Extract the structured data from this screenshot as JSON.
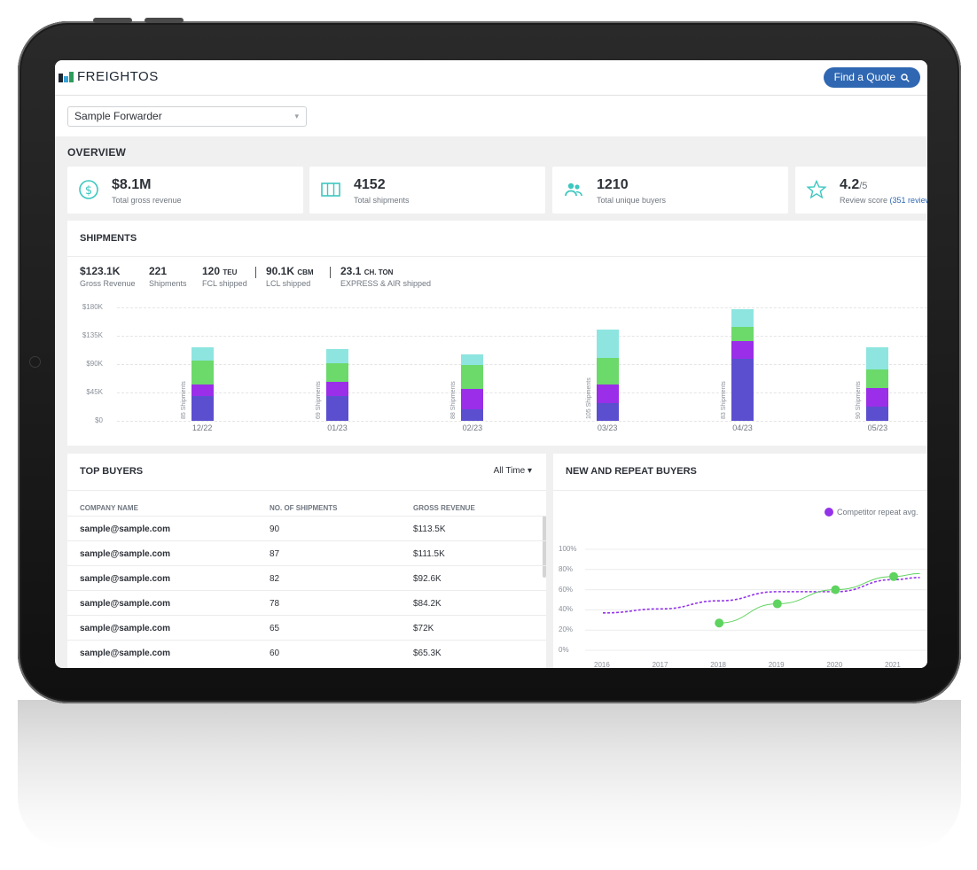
{
  "app": {
    "logo_text": "FREIGHTOS",
    "quote_button": "Find a Quote",
    "forwarder_select": "Sample Forwarder"
  },
  "overview": {
    "title": "OVERVIEW",
    "kpis": [
      {
        "icon": "dollar-circle-icon",
        "value": "$8.1M",
        "suffix": "",
        "label": "Total gross revenue"
      },
      {
        "icon": "container-icon",
        "value": "4152",
        "suffix": "",
        "label": "Total shipments"
      },
      {
        "icon": "users-icon",
        "value": "1210",
        "suffix": "",
        "label": "Total unique buyers"
      },
      {
        "icon": "star-icon",
        "value": "4.2",
        "suffix": "/5",
        "label": "Review score",
        "link": "(351 review"
      }
    ]
  },
  "shipments": {
    "title": "SHIPMENTS",
    "summary": [
      {
        "value": "$123.1K",
        "unit": "",
        "label": "Gross Revenue"
      },
      {
        "value": "221",
        "unit": "",
        "label": "Shipments"
      },
      {
        "value": "120",
        "unit": "TEU",
        "label": "FCL shipped"
      },
      {
        "value": "90.1K",
        "unit": "CBM",
        "label": "LCL shipped"
      },
      {
        "value": "23.1",
        "unit": "CH. TON",
        "label": "EXPRESS & AIR shipped"
      }
    ]
  },
  "chart_data": [
    {
      "type": "bar",
      "stacked": true,
      "categories": [
        "12/22",
        "01/23",
        "02/23",
        "03/23",
        "04/23",
        "05/23"
      ],
      "series": [
        {
          "color": "#5b4fd0",
          "values": [
            40,
            40,
            18,
            28,
            98,
            22
          ]
        },
        {
          "color": "#9b2ee8",
          "values": [
            18,
            22,
            33,
            30,
            28,
            30
          ]
        },
        {
          "color": "#6cd96b",
          "values": [
            37,
            30,
            37,
            42,
            23,
            30
          ]
        },
        {
          "color": "#8ee5e0",
          "values": [
            22,
            22,
            17,
            45,
            28,
            35
          ]
        }
      ],
      "bar_annotations": [
        "85 Shipments",
        "69 Shipments",
        "88 Shipments",
        "105 Shipments",
        "83 Shipments",
        "90 Shipments"
      ],
      "y_ticks": [
        "$0",
        "$45K",
        "$90K",
        "$135K",
        "$180K"
      ],
      "ylim": [
        0,
        180
      ],
      "grid": true
    },
    {
      "type": "line",
      "title": "NEW AND REPEAT BUYERS",
      "x": [
        2016,
        2017,
        2018,
        2019,
        2020,
        2021
      ],
      "x_labels": [
        "2016",
        "2017",
        "2018",
        "2019",
        "2020",
        "2021"
      ],
      "y_ticks": [
        "0%",
        "20%",
        "40%",
        "60%",
        "80%",
        "100%"
      ],
      "ylim": [
        0,
        100
      ],
      "series": [
        {
          "name": "Competitor repeat avg.",
          "color": "#9333ea",
          "style": "dashed",
          "x": [
            2016,
            2017,
            2018,
            2019,
            2020,
            2021,
            2021.45
          ],
          "y": [
            37,
            41,
            49,
            58,
            58,
            70,
            72
          ]
        },
        {
          "color": "#5fd35f",
          "style": "solid-markers",
          "x": [
            2018,
            2019,
            2020,
            2021,
            2021.45
          ],
          "y": [
            27,
            46,
            60,
            73,
            76
          ]
        }
      ]
    }
  ],
  "top_buyers": {
    "title": "TOP BUYERS",
    "filter": "All Time",
    "columns": [
      "COMPANY NAME",
      "NO. OF SHIPMENTS",
      "GROSS REVENUE"
    ],
    "rows": [
      [
        "sample@sample.com",
        "90",
        "$113.5K"
      ],
      [
        "sample@sample.com",
        "87",
        "$111.5K"
      ],
      [
        "sample@sample.com",
        "82",
        "$92.6K"
      ],
      [
        "sample@sample.com",
        "78",
        "$84.2K"
      ],
      [
        "sample@sample.com",
        "65",
        "$72K"
      ],
      [
        "sample@sample.com",
        "60",
        "$65.3K"
      ]
    ]
  },
  "new_repeat": {
    "title": "NEW AND REPEAT BUYERS",
    "legend": "Competitor repeat avg."
  }
}
